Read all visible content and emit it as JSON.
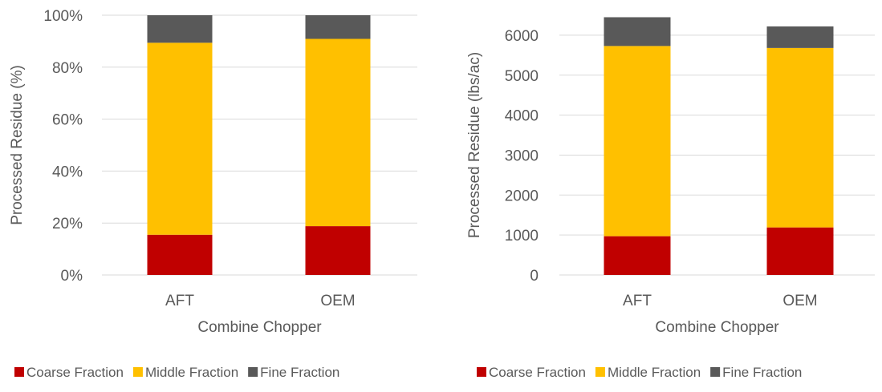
{
  "chart_data": [
    {
      "type": "bar",
      "stacked": true,
      "categories": [
        "AFT",
        "OEM"
      ],
      "series": [
        {
          "name": "Coarse Fraction",
          "values": [
            15.5,
            18.8
          ]
        },
        {
          "name": "Middle Fraction",
          "values": [
            73.9,
            72.1
          ]
        },
        {
          "name": "Fine Fraction",
          "values": [
            10.6,
            9.1
          ]
        }
      ],
      "xlabel": "Combine Chopper",
      "ylabel": "Processed Residue (%)",
      "ylim": [
        0,
        100
      ],
      "yticks": [
        0,
        20,
        40,
        60,
        80,
        100
      ],
      "ytick_labels": [
        "0%",
        "20%",
        "40%",
        "60%",
        "80%",
        "100%"
      ],
      "grid": true,
      "legend": "bottom"
    },
    {
      "type": "bar",
      "stacked": true,
      "categories": [
        "AFT",
        "OEM"
      ],
      "series": [
        {
          "name": "Coarse Fraction",
          "values": [
            970,
            1190
          ]
        },
        {
          "name": "Middle Fraction",
          "values": [
            4760,
            4490
          ]
        },
        {
          "name": "Fine Fraction",
          "values": [
            720,
            540
          ]
        }
      ],
      "xlabel": "Combine Chopper",
      "ylabel": "Processed Residue (lbs/ac)",
      "ylim": [
        0,
        6500
      ],
      "yticks": [
        0,
        1000,
        2000,
        3000,
        4000,
        5000,
        6000
      ],
      "ytick_labels": [
        "0",
        "1000",
        "2000",
        "3000",
        "4000",
        "5000",
        "6000"
      ],
      "grid": true,
      "legend": "bottom"
    }
  ],
  "colors": {
    "coarse": "#C00000",
    "middle": "#FFC000",
    "fine": "#595959",
    "grid": "#D9D9D9",
    "text": "#595959"
  }
}
